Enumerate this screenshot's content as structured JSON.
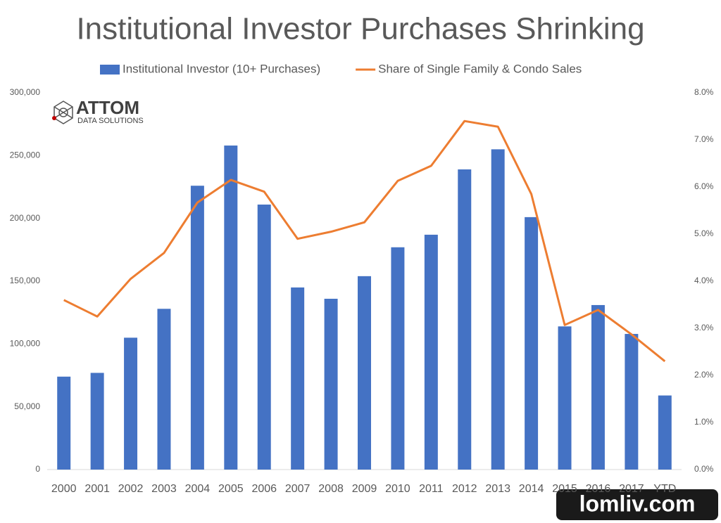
{
  "chart_data": {
    "type": "bar",
    "title": "Institutional Investor Purchases Shrinking",
    "categories": [
      "2000",
      "2001",
      "2002",
      "2003",
      "2004",
      "2005",
      "2006",
      "2007",
      "2008",
      "2009",
      "2010",
      "2011",
      "2012",
      "2013",
      "2014",
      "2015",
      "2016",
      "2017",
      "YTD"
    ],
    "series": [
      {
        "name": "Institutional Investor (10+ Purchases)",
        "type": "bar",
        "color": "#4472c4",
        "values": [
          74000,
          77000,
          105000,
          128000,
          226000,
          258000,
          211000,
          145000,
          136000,
          154000,
          177000,
          187000,
          239000,
          255000,
          201000,
          114000,
          131000,
          108000,
          59000
        ]
      },
      {
        "name": "Share of Single Family & Condo Sales",
        "type": "line",
        "axis": "y2",
        "color": "#ed7d31",
        "values": [
          3.6,
          3.25,
          4.05,
          4.6,
          5.67,
          6.15,
          5.9,
          4.9,
          5.05,
          5.25,
          6.13,
          6.45,
          7.4,
          7.28,
          5.85,
          3.07,
          3.39,
          2.87,
          2.3
        ]
      }
    ],
    "ylim": [
      0,
      300000
    ],
    "yticks": [
      0,
      {
        "value": 50000,
        "label": "50,000"
      },
      {
        "value": 100000,
        "label": "100,000"
      },
      {
        "value": 150000,
        "label": "150,000"
      },
      {
        "value": 200000,
        "label": "200,000"
      },
      {
        "value": 250000,
        "label": "250,000"
      },
      {
        "value": 300000,
        "label": "300,000"
      }
    ],
    "y2lim": [
      0,
      8
    ],
    "y2ticks": [
      {
        "value": 0,
        "label": "0.0%"
      },
      {
        "value": 1,
        "label": "1.0%"
      },
      {
        "value": 2,
        "label": "2.0%"
      },
      {
        "value": 3,
        "label": "3.0%"
      },
      {
        "value": 4,
        "label": "4.0%"
      },
      {
        "value": 5,
        "label": "5.0%"
      },
      {
        "value": 6,
        "label": "6.0%"
      },
      {
        "value": 7,
        "label": "7.0%"
      },
      {
        "value": 8,
        "label": "8.0%"
      }
    ],
    "grid": false,
    "legend": "top",
    "logo": {
      "name": "ATTOM",
      "tagline": "DATA SOLUTIONS"
    },
    "watermark": "lomliv.com"
  }
}
